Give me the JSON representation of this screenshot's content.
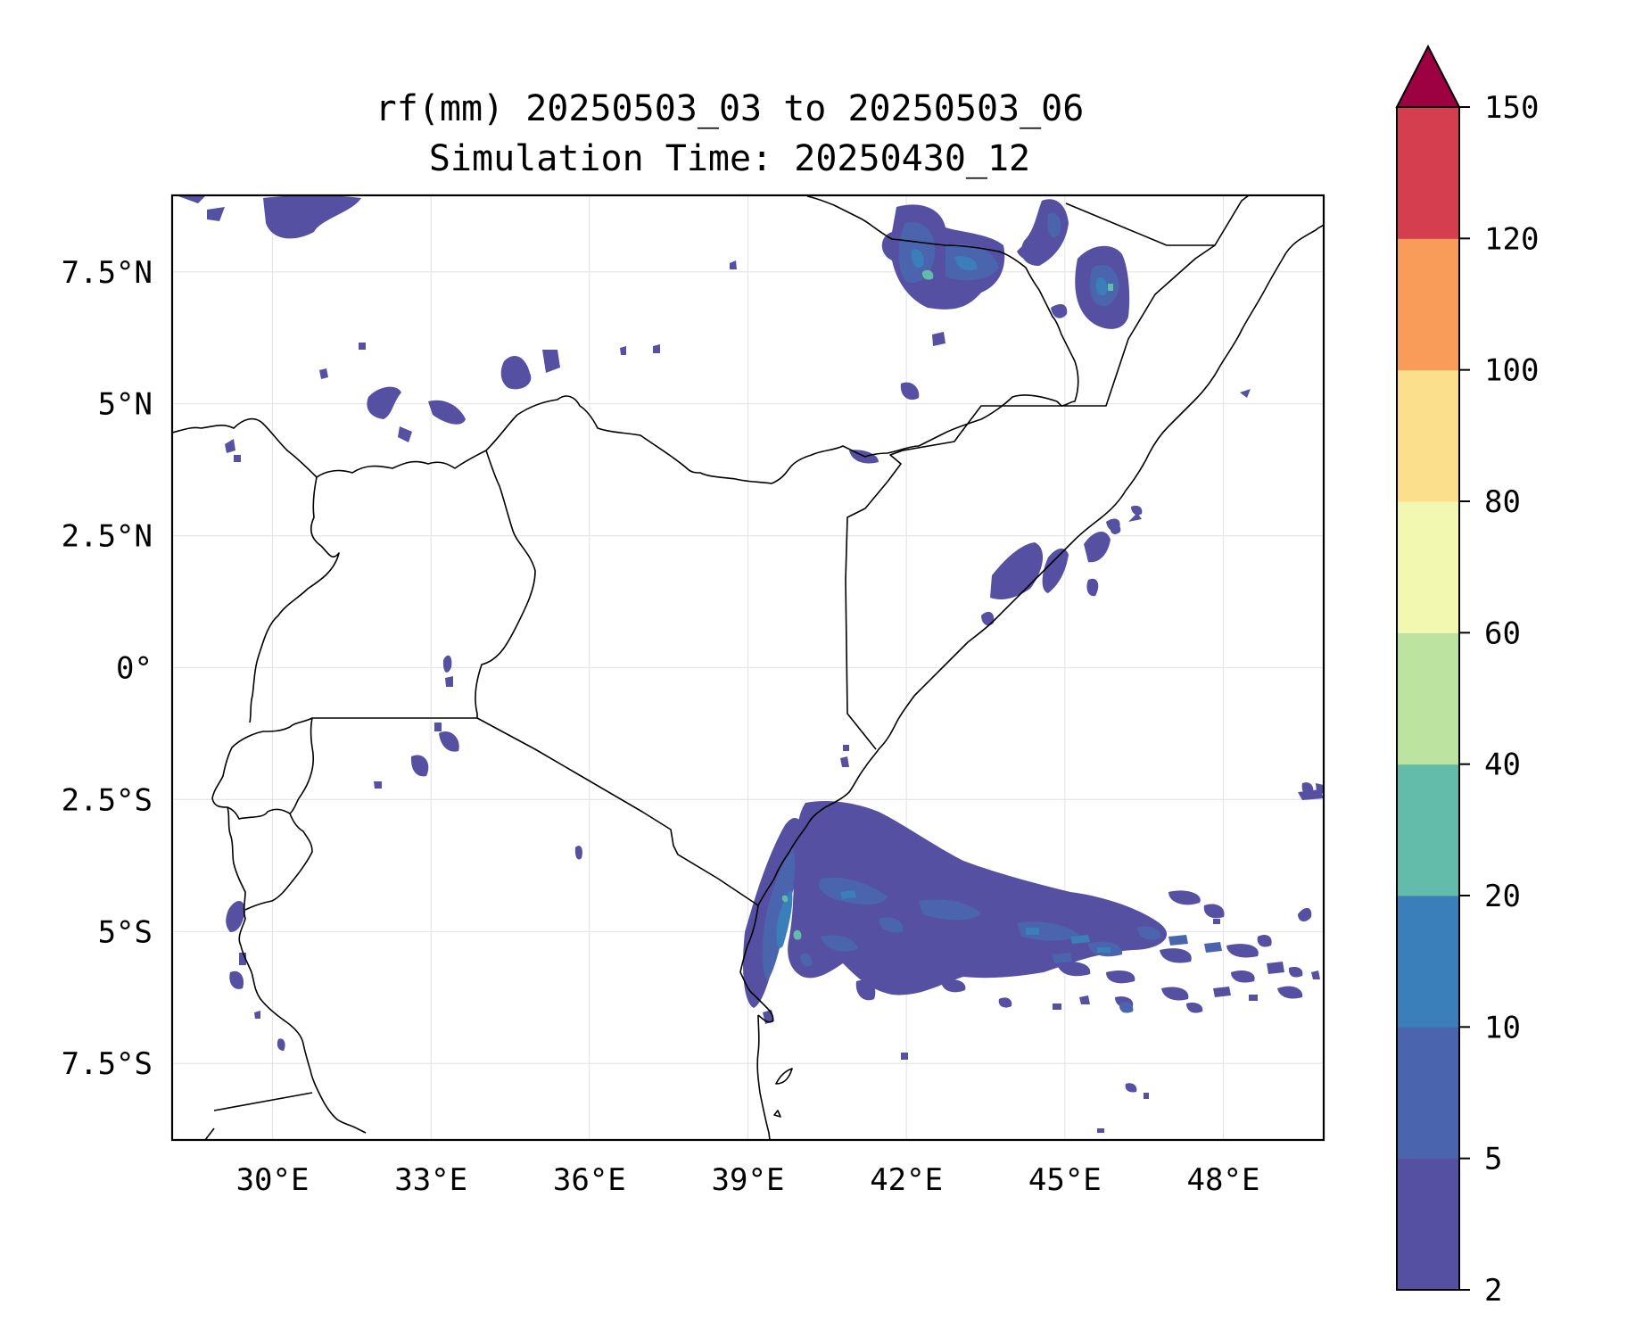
{
  "map": {
    "title_line1": "rf(mm) 20250503_03 to 20250503_06",
    "title_line2": "Simulation Time: 20250430_12",
    "x_ticks": [
      {
        "lon": 30,
        "label": "30°E"
      },
      {
        "lon": 33,
        "label": "33°E"
      },
      {
        "lon": 36,
        "label": "36°E"
      },
      {
        "lon": 39,
        "label": "39°E"
      },
      {
        "lon": 42,
        "label": "42°E"
      },
      {
        "lon": 45,
        "label": "45°E"
      },
      {
        "lon": 48,
        "label": "48°E"
      }
    ],
    "y_ticks": [
      {
        "lat": 7.5,
        "label": "7.5°N"
      },
      {
        "lat": 5,
        "label": "5°N"
      },
      {
        "lat": 2.5,
        "label": "2.5°N"
      },
      {
        "lat": 0,
        "label": "0°"
      },
      {
        "lat": -2.5,
        "label": "2.5°S"
      },
      {
        "lat": -5,
        "label": "5°S"
      },
      {
        "lat": -7.5,
        "label": "7.5°S"
      }
    ],
    "extent": {
      "lon_min": 28.1,
      "lon_max": 49.9,
      "lat_min": -8.95,
      "lat_max": 8.95
    },
    "grid": true,
    "colorbar": {
      "position": "right",
      "extend": "max",
      "levels": [
        {
          "value": 2,
          "label": "2",
          "color": "#5650a3"
        },
        {
          "value": 5,
          "label": "5",
          "color": "#4a64ae"
        },
        {
          "value": 10,
          "label": "10",
          "color": "#3a7fb9"
        },
        {
          "value": 20,
          "label": "20",
          "color": "#63bba9"
        },
        {
          "value": 40,
          "label": "40",
          "color": "#bce39f"
        },
        {
          "value": 60,
          "label": "60",
          "color": "#f3f8b0"
        },
        {
          "value": 80,
          "label": "80",
          "color": "#fcdf8d"
        },
        {
          "value": 100,
          "label": "100",
          "color": "#f99c59"
        },
        {
          "value": 120,
          "label": "120",
          "color": "#d53e4f"
        },
        {
          "value": 150,
          "label": "150",
          "color": "#9e0142"
        }
      ]
    }
  }
}
